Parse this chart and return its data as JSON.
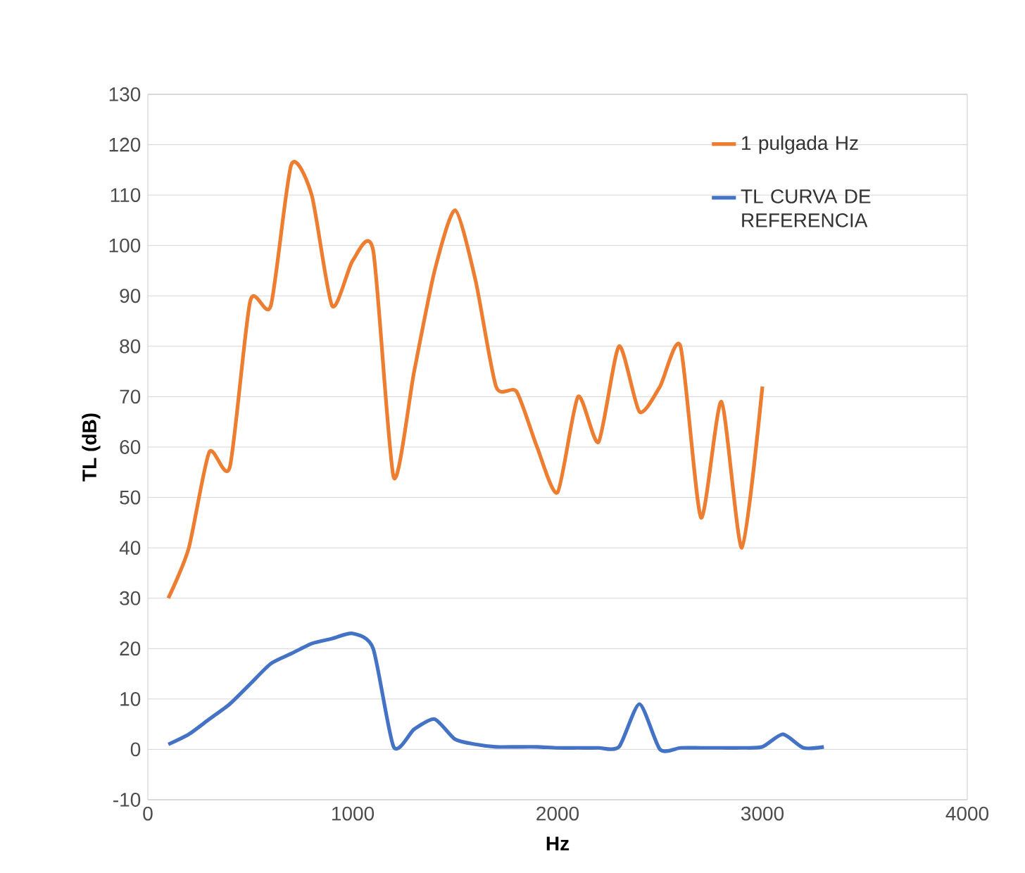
{
  "chart_data": {
    "type": "line",
    "xlabel": "Hz",
    "ylabel": "TL (dB)",
    "xlim": [
      0,
      4000
    ],
    "ylim": [
      -10,
      130
    ],
    "xticks": [
      0,
      1000,
      2000,
      3000,
      4000
    ],
    "yticks": [
      -10,
      0,
      10,
      20,
      30,
      40,
      50,
      60,
      70,
      80,
      90,
      100,
      110,
      120,
      130
    ],
    "grid": "y",
    "legend": "top right",
    "series": [
      {
        "name": "1 pulgada  Hz",
        "color": "#ed7d31",
        "x": [
          100,
          200,
          300,
          400,
          500,
          600,
          700,
          800,
          900,
          1000,
          1100,
          1200,
          1300,
          1400,
          1500,
          1600,
          1700,
          1800,
          1900,
          2000,
          2100,
          2200,
          2300,
          2400,
          2500,
          2600,
          2700,
          2800,
          2900,
          3000
        ],
        "values": [
          30,
          40,
          59,
          56,
          89,
          88,
          116,
          110,
          88,
          97,
          99,
          54,
          75,
          95,
          107,
          93,
          72,
          71,
          60,
          51,
          70,
          61,
          80,
          67,
          72,
          80,
          46,
          69,
          40,
          72
        ]
      },
      {
        "name": "TL CURVA DE REFERENCIA",
        "color": "#4472c4",
        "x": [
          100,
          200,
          300,
          400,
          500,
          600,
          700,
          800,
          900,
          1000,
          1100,
          1200,
          1300,
          1400,
          1500,
          1600,
          1700,
          1800,
          1900,
          2000,
          2100,
          2200,
          2300,
          2400,
          2500,
          2600,
          2700,
          2800,
          2900,
          3000,
          3100,
          3200,
          3300
        ],
        "values": [
          1,
          3,
          6,
          9,
          13,
          17,
          19,
          21,
          22,
          23,
          20,
          0.5,
          4,
          6,
          2,
          1,
          0.5,
          0.5,
          0.5,
          0.3,
          0.3,
          0.3,
          0.5,
          9,
          0,
          0.3,
          0.3,
          0.3,
          0.3,
          0.5,
          3,
          0.3,
          0.5
        ]
      }
    ]
  }
}
